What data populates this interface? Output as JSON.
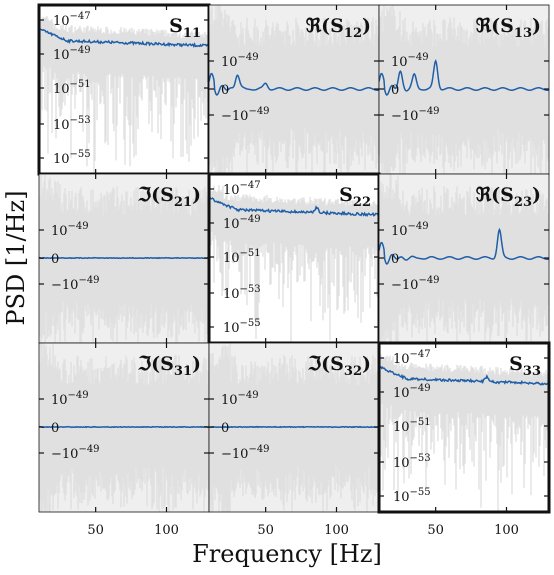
{
  "chart_data": {
    "type": "line",
    "layout": "3x3 grid",
    "ylabel": "PSD [1/Hz]",
    "xlabel": "Frequency [Hz]",
    "x_tick_labels": [
      "50",
      "100"
    ],
    "x_ticks": [
      50,
      100
    ],
    "xlim": [
      10,
      130
    ],
    "series_color": "#1f5fa8",
    "band_color": "#e0e0e0",
    "diagonal_bg": "#ffffff",
    "offdiag_bg": "#efefef",
    "diag_ticks": [
      "10^{-47}",
      "10^{-49}",
      "10^{-51}",
      "10^{-53}",
      "10^{-55}"
    ],
    "offdiag_ticks": [
      "10^{-49}",
      "0",
      "-10^{-49}"
    ],
    "panels": [
      {
        "id": "S11",
        "title": "S",
        "sub": "11",
        "kind": "diag",
        "row": 0,
        "col": 0,
        "peaks": []
      },
      {
        "id": "ReS12",
        "title": "ℜ(S",
        "sub": "12",
        "close": ")",
        "kind": "real",
        "row": 0,
        "col": 1,
        "peaks": [
          [
            30,
            0.55
          ],
          [
            50,
            0.2
          ]
        ]
      },
      {
        "id": "ReS13",
        "title": "ℜ(S",
        "sub": "13",
        "close": ")",
        "kind": "real",
        "row": 0,
        "col": 2,
        "peaks": [
          [
            25,
            0.6
          ],
          [
            35,
            0.5
          ],
          [
            50,
            1.0
          ]
        ]
      },
      {
        "id": "ImS21",
        "title": "ℑ(S",
        "sub": "21",
        "close": ")",
        "kind": "imag",
        "row": 1,
        "col": 0,
        "peaks": []
      },
      {
        "id": "S22",
        "title": "S",
        "sub": "22",
        "kind": "diag",
        "row": 1,
        "col": 1,
        "peaks": [
          [
            86,
            0.6
          ]
        ]
      },
      {
        "id": "ReS23",
        "title": "ℜ(S",
        "sub": "23",
        "close": ")",
        "kind": "real",
        "row": 1,
        "col": 2,
        "peaks": [
          [
            95,
            1.0
          ]
        ]
      },
      {
        "id": "ImS31",
        "title": "ℑ(S",
        "sub": "31",
        "close": ")",
        "kind": "imag",
        "row": 2,
        "col": 0,
        "peaks": []
      },
      {
        "id": "ImS32",
        "title": "ℑ(S",
        "sub": "32",
        "close": ")",
        "kind": "imag",
        "row": 2,
        "col": 1,
        "peaks": []
      },
      {
        "id": "S33",
        "title": "S",
        "sub": "33",
        "kind": "diag",
        "row": 2,
        "col": 2,
        "peaks": [
          [
            86,
            0.5
          ]
        ]
      }
    ]
  }
}
